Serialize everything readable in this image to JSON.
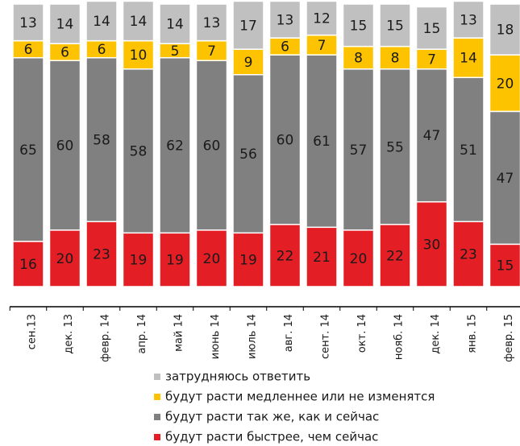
{
  "chart_data": {
    "type": "stacked_bar",
    "categories": [
      "сен.13",
      "дек. 13",
      "февр. 14",
      "апр. 14",
      "май 14",
      "июнь 14",
      "июль 14",
      "авг. 14",
      "сент. 14",
      "окт. 14",
      "нояб. 14",
      "дек. 14",
      "янв. 15",
      "февр. 15"
    ],
    "ylim": [
      0,
      100
    ],
    "series": [
      {
        "name": "будут расти быстрее, чем сейчас",
        "color": "#e31e24",
        "values": [
          16,
          20,
          23,
          19,
          19,
          20,
          19,
          22,
          21,
          20,
          22,
          30,
          23,
          15
        ]
      },
      {
        "name": "будут расти так же, как и сейчас",
        "color": "#808080",
        "values": [
          65,
          60,
          58,
          58,
          62,
          60,
          56,
          60,
          61,
          57,
          55,
          47,
          51,
          47
        ]
      },
      {
        "name": "будут расти медленнее или не изменятся",
        "color": "#fdc300",
        "values": [
          6,
          6,
          6,
          10,
          5,
          7,
          9,
          6,
          7,
          8,
          8,
          7,
          14,
          20
        ]
      },
      {
        "name": "затрудняюсь ответить",
        "color": "#c0c0c0",
        "values": [
          13,
          14,
          14,
          14,
          14,
          13,
          17,
          13,
          12,
          15,
          15,
          15,
          13,
          18
        ]
      }
    ]
  }
}
